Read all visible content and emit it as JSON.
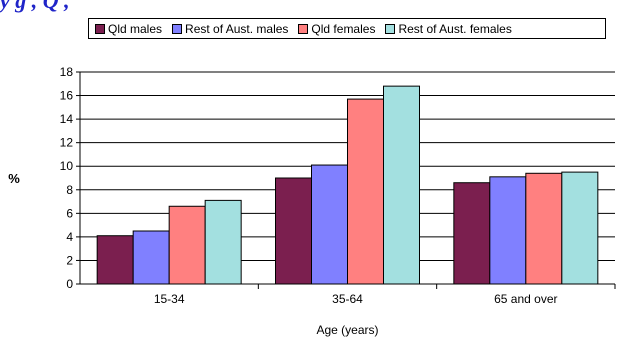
{
  "header_clip_text": "y g , Q ,",
  "chart_data": {
    "type": "bar",
    "title": "",
    "xlabel": "Age (years)",
    "ylabel": "%",
    "ylim": [
      0,
      18
    ],
    "yticks": [
      0,
      2,
      4,
      6,
      8,
      10,
      12,
      14,
      16,
      18
    ],
    "grid": true,
    "legend_position": "top",
    "categories": [
      "15-34",
      "35-64",
      "65 and over"
    ],
    "series": [
      {
        "name": "Qld males",
        "color": "#7b1f4f",
        "values": [
          4.1,
          9.0,
          8.6
        ]
      },
      {
        "name": "Rest of Aust. males",
        "color": "#8080ff",
        "values": [
          4.5,
          10.1,
          9.1
        ]
      },
      {
        "name": "Qld females",
        "color": "#ff8080",
        "values": [
          6.6,
          15.7,
          9.4
        ]
      },
      {
        "name": "Rest of Aust. females",
        "color": "#a3e0e0",
        "values": [
          7.1,
          16.8,
          9.5
        ]
      }
    ]
  }
}
